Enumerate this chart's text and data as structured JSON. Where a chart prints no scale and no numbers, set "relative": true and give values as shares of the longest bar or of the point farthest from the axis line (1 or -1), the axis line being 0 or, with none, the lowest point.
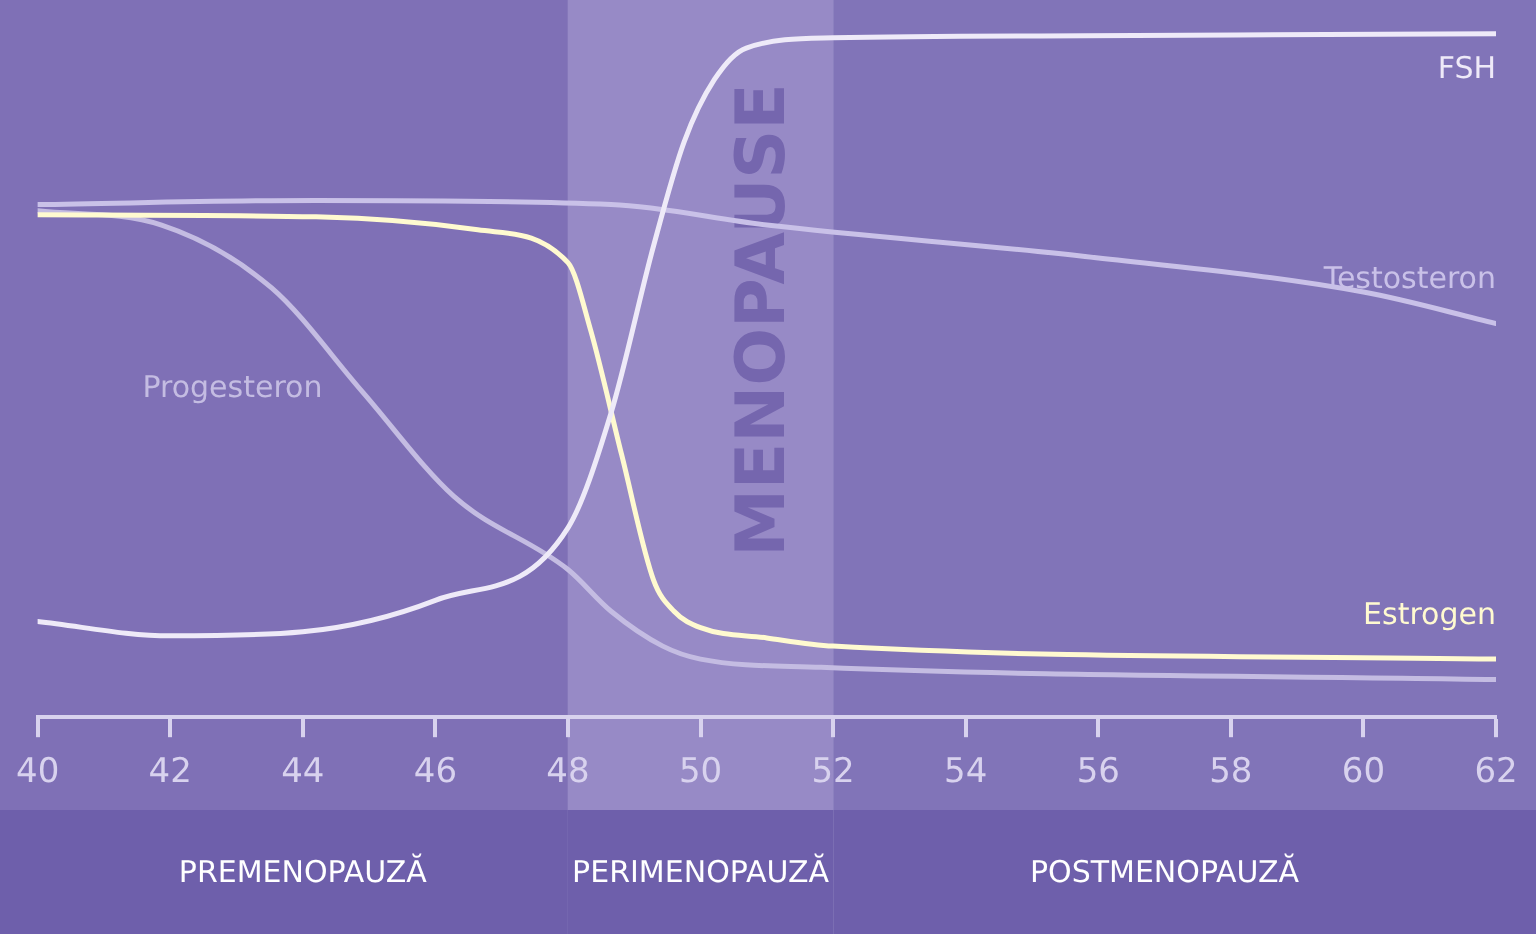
{
  "chart_data": {
    "type": "line",
    "relative": true,
    "xlim": [
      40,
      62
    ],
    "xticks": [
      40,
      42,
      44,
      46,
      48,
      50,
      52,
      54,
      56,
      58,
      60,
      62
    ],
    "series": [
      {
        "name": "FSH",
        "color": "#eeeaf8",
        "x": [
          40,
          42,
          44,
          46,
          48,
          48.65,
          49.29,
          49.75,
          50.21,
          50.69,
          52,
          55.8,
          62
        ],
        "values": [
          0.14,
          0.119,
          0.125,
          0.171,
          0.277,
          0.445,
          0.689,
          0.841,
          0.933,
          0.979,
          0.994,
          0.997,
          1
        ]
      },
      {
        "name": "Testosteron",
        "color": "#c9c1e8",
        "x": [
          40,
          44.2,
          48.65,
          51,
          55.8,
          60,
          62
        ],
        "values": [
          0.75,
          0.756,
          0.75,
          0.72,
          0.674,
          0.622,
          0.576
        ]
      },
      {
        "name": "Estrogen",
        "color": "#fffad0",
        "x": [
          40,
          44.2,
          46.64,
          48,
          48.34,
          48.81,
          49.29,
          49.6,
          50,
          51,
          52,
          62
        ],
        "values": [
          0.735,
          0.732,
          0.713,
          0.665,
          0.567,
          0.384,
          0.201,
          0.155,
          0.131,
          0.116,
          0.104,
          0.085
        ]
      },
      {
        "name": "Progesteron",
        "color": "#c4bce2",
        "x": [
          40,
          41.87,
          43.53,
          44.9,
          46.28,
          48,
          48.65,
          49.43,
          50,
          51.82,
          62
        ],
        "values": [
          0.741,
          0.72,
          0.628,
          0.476,
          0.323,
          0.216,
          0.155,
          0.104,
          0.085,
          0.073,
          0.055
        ]
      }
    ],
    "bands": [
      {
        "axis": "x",
        "from": 40,
        "to": 48,
        "label": "PREMENOPAUZĂ",
        "color": "#7f70b6"
      },
      {
        "axis": "x",
        "from": 48,
        "to": 52,
        "label": "PERIMENOPAUZĂ",
        "color": "#978ac6"
      },
      {
        "axis": "x",
        "from": 52,
        "to": 62,
        "label": "POSTMENOPAUZĂ",
        "color": "#8174b8"
      }
    ],
    "annotations": [
      "MENOPAUSE"
    ],
    "grid": false,
    "legend": false,
    "marker": "none",
    "line_style": "solid"
  }
}
